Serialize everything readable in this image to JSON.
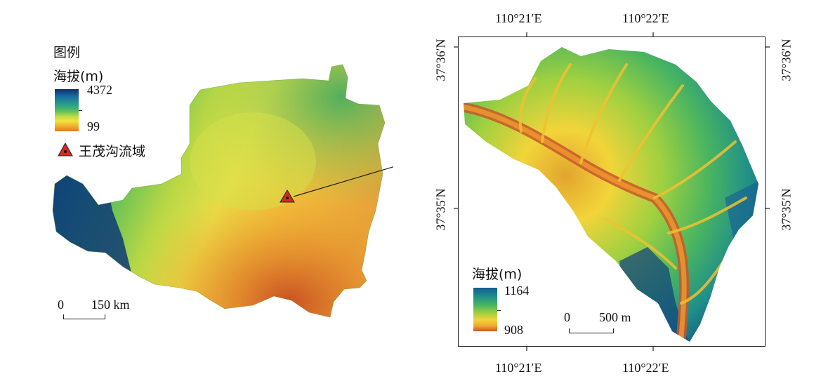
{
  "left_map": {
    "legend": {
      "title": "图例",
      "elev_title": "海拔(m)",
      "max": "4372",
      "min": "99",
      "watershed_label": "王茂沟流域"
    },
    "scale": {
      "zero": "0",
      "label": "150 km"
    }
  },
  "right_map": {
    "legend": {
      "elev_title": "海拔(m)",
      "max": "1164",
      "min": "908"
    },
    "scale": {
      "zero": "0",
      "label": "500 m"
    },
    "top_ticks": [
      "110°21′E",
      "110°22′E"
    ],
    "bottom_ticks": [
      "110°21′E",
      "110°22′E"
    ],
    "left_ticks": [
      "37°36′N",
      "37°35′N"
    ],
    "right_ticks": [
      "37°36′N",
      "37°35′N"
    ]
  },
  "colors": {
    "ramp": [
      "#0b2f6a",
      "#1a6fa0",
      "#2aa28a",
      "#5cbf5a",
      "#b7d640",
      "#f3e342",
      "#f2b630",
      "#e07b27",
      "#c84b22"
    ],
    "marker": "#d62b20"
  }
}
